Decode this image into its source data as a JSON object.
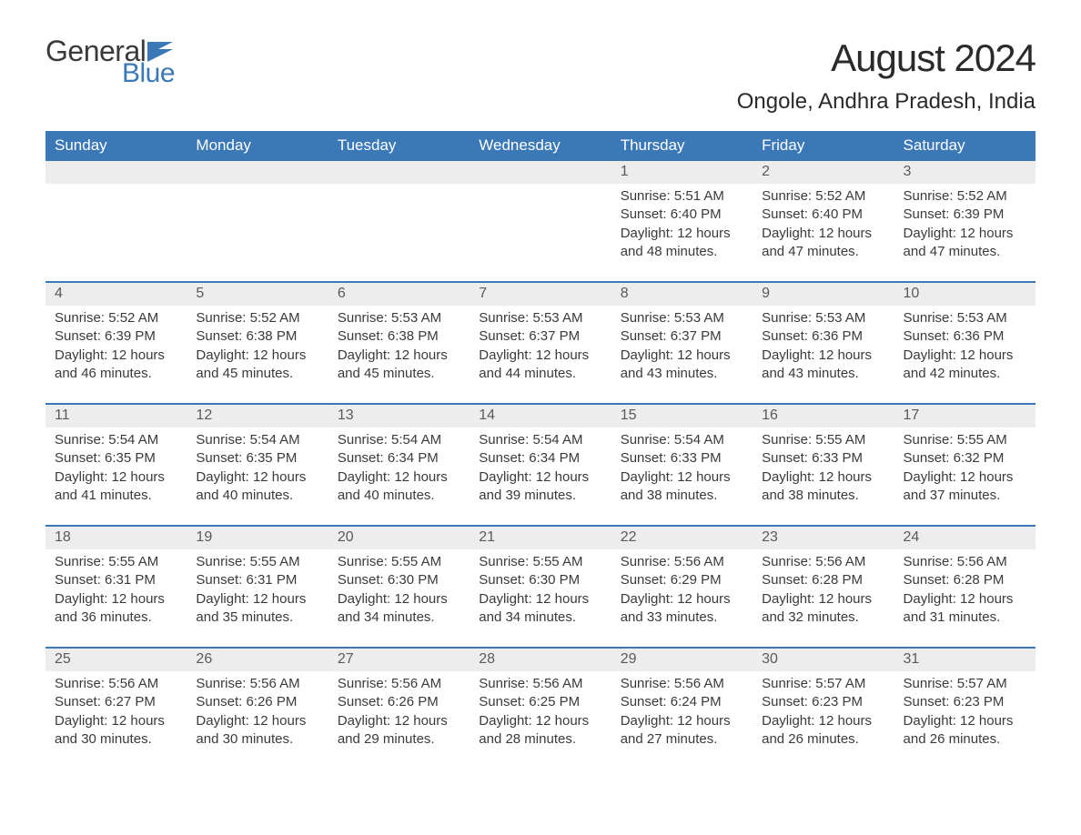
{
  "logo": {
    "text_general": "General",
    "text_blue": "Blue",
    "icon_color": "#3a78b8"
  },
  "header": {
    "month_title": "August 2024",
    "location": "Ongole, Andhra Pradesh, India"
  },
  "colors": {
    "header_bg": "#3a78b8",
    "header_text": "#ffffff",
    "daynum_bg": "#ededed",
    "daynum_text": "#5a5a5a",
    "body_text": "#3a3a3a",
    "row_border": "#3a78b8",
    "page_bg": "#ffffff"
  },
  "weekdays": [
    "Sunday",
    "Monday",
    "Tuesday",
    "Wednesday",
    "Thursday",
    "Friday",
    "Saturday"
  ],
  "weeks": [
    [
      {
        "day": "",
        "sunrise": "",
        "sunset": "",
        "daylight": ""
      },
      {
        "day": "",
        "sunrise": "",
        "sunset": "",
        "daylight": ""
      },
      {
        "day": "",
        "sunrise": "",
        "sunset": "",
        "daylight": ""
      },
      {
        "day": "",
        "sunrise": "",
        "sunset": "",
        "daylight": ""
      },
      {
        "day": "1",
        "sunrise": "Sunrise: 5:51 AM",
        "sunset": "Sunset: 6:40 PM",
        "daylight": "Daylight: 12 hours and 48 minutes."
      },
      {
        "day": "2",
        "sunrise": "Sunrise: 5:52 AM",
        "sunset": "Sunset: 6:40 PM",
        "daylight": "Daylight: 12 hours and 47 minutes."
      },
      {
        "day": "3",
        "sunrise": "Sunrise: 5:52 AM",
        "sunset": "Sunset: 6:39 PM",
        "daylight": "Daylight: 12 hours and 47 minutes."
      }
    ],
    [
      {
        "day": "4",
        "sunrise": "Sunrise: 5:52 AM",
        "sunset": "Sunset: 6:39 PM",
        "daylight": "Daylight: 12 hours and 46 minutes."
      },
      {
        "day": "5",
        "sunrise": "Sunrise: 5:52 AM",
        "sunset": "Sunset: 6:38 PM",
        "daylight": "Daylight: 12 hours and 45 minutes."
      },
      {
        "day": "6",
        "sunrise": "Sunrise: 5:53 AM",
        "sunset": "Sunset: 6:38 PM",
        "daylight": "Daylight: 12 hours and 45 minutes."
      },
      {
        "day": "7",
        "sunrise": "Sunrise: 5:53 AM",
        "sunset": "Sunset: 6:37 PM",
        "daylight": "Daylight: 12 hours and 44 minutes."
      },
      {
        "day": "8",
        "sunrise": "Sunrise: 5:53 AM",
        "sunset": "Sunset: 6:37 PM",
        "daylight": "Daylight: 12 hours and 43 minutes."
      },
      {
        "day": "9",
        "sunrise": "Sunrise: 5:53 AM",
        "sunset": "Sunset: 6:36 PM",
        "daylight": "Daylight: 12 hours and 43 minutes."
      },
      {
        "day": "10",
        "sunrise": "Sunrise: 5:53 AM",
        "sunset": "Sunset: 6:36 PM",
        "daylight": "Daylight: 12 hours and 42 minutes."
      }
    ],
    [
      {
        "day": "11",
        "sunrise": "Sunrise: 5:54 AM",
        "sunset": "Sunset: 6:35 PM",
        "daylight": "Daylight: 12 hours and 41 minutes."
      },
      {
        "day": "12",
        "sunrise": "Sunrise: 5:54 AM",
        "sunset": "Sunset: 6:35 PM",
        "daylight": "Daylight: 12 hours and 40 minutes."
      },
      {
        "day": "13",
        "sunrise": "Sunrise: 5:54 AM",
        "sunset": "Sunset: 6:34 PM",
        "daylight": "Daylight: 12 hours and 40 minutes."
      },
      {
        "day": "14",
        "sunrise": "Sunrise: 5:54 AM",
        "sunset": "Sunset: 6:34 PM",
        "daylight": "Daylight: 12 hours and 39 minutes."
      },
      {
        "day": "15",
        "sunrise": "Sunrise: 5:54 AM",
        "sunset": "Sunset: 6:33 PM",
        "daylight": "Daylight: 12 hours and 38 minutes."
      },
      {
        "day": "16",
        "sunrise": "Sunrise: 5:55 AM",
        "sunset": "Sunset: 6:33 PM",
        "daylight": "Daylight: 12 hours and 38 minutes."
      },
      {
        "day": "17",
        "sunrise": "Sunrise: 5:55 AM",
        "sunset": "Sunset: 6:32 PM",
        "daylight": "Daylight: 12 hours and 37 minutes."
      }
    ],
    [
      {
        "day": "18",
        "sunrise": "Sunrise: 5:55 AM",
        "sunset": "Sunset: 6:31 PM",
        "daylight": "Daylight: 12 hours and 36 minutes."
      },
      {
        "day": "19",
        "sunrise": "Sunrise: 5:55 AM",
        "sunset": "Sunset: 6:31 PM",
        "daylight": "Daylight: 12 hours and 35 minutes."
      },
      {
        "day": "20",
        "sunrise": "Sunrise: 5:55 AM",
        "sunset": "Sunset: 6:30 PM",
        "daylight": "Daylight: 12 hours and 34 minutes."
      },
      {
        "day": "21",
        "sunrise": "Sunrise: 5:55 AM",
        "sunset": "Sunset: 6:30 PM",
        "daylight": "Daylight: 12 hours and 34 minutes."
      },
      {
        "day": "22",
        "sunrise": "Sunrise: 5:56 AM",
        "sunset": "Sunset: 6:29 PM",
        "daylight": "Daylight: 12 hours and 33 minutes."
      },
      {
        "day": "23",
        "sunrise": "Sunrise: 5:56 AM",
        "sunset": "Sunset: 6:28 PM",
        "daylight": "Daylight: 12 hours and 32 minutes."
      },
      {
        "day": "24",
        "sunrise": "Sunrise: 5:56 AM",
        "sunset": "Sunset: 6:28 PM",
        "daylight": "Daylight: 12 hours and 31 minutes."
      }
    ],
    [
      {
        "day": "25",
        "sunrise": "Sunrise: 5:56 AM",
        "sunset": "Sunset: 6:27 PM",
        "daylight": "Daylight: 12 hours and 30 minutes."
      },
      {
        "day": "26",
        "sunrise": "Sunrise: 5:56 AM",
        "sunset": "Sunset: 6:26 PM",
        "daylight": "Daylight: 12 hours and 30 minutes."
      },
      {
        "day": "27",
        "sunrise": "Sunrise: 5:56 AM",
        "sunset": "Sunset: 6:26 PM",
        "daylight": "Daylight: 12 hours and 29 minutes."
      },
      {
        "day": "28",
        "sunrise": "Sunrise: 5:56 AM",
        "sunset": "Sunset: 6:25 PM",
        "daylight": "Daylight: 12 hours and 28 minutes."
      },
      {
        "day": "29",
        "sunrise": "Sunrise: 5:56 AM",
        "sunset": "Sunset: 6:24 PM",
        "daylight": "Daylight: 12 hours and 27 minutes."
      },
      {
        "day": "30",
        "sunrise": "Sunrise: 5:57 AM",
        "sunset": "Sunset: 6:23 PM",
        "daylight": "Daylight: 12 hours and 26 minutes."
      },
      {
        "day": "31",
        "sunrise": "Sunrise: 5:57 AM",
        "sunset": "Sunset: 6:23 PM",
        "daylight": "Daylight: 12 hours and 26 minutes."
      }
    ]
  ]
}
